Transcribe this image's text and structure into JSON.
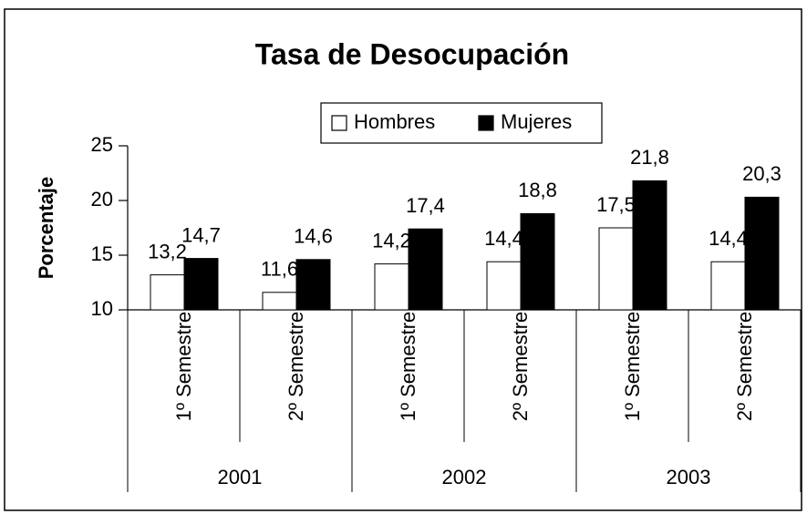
{
  "chart_data": {
    "type": "bar",
    "title": "Tasa de Desocupación",
    "y_label": "Porcentaje",
    "categories": [
      "1º Semestre",
      "2º Semestre",
      "1º Semestre",
      "2º Semestre",
      "1º Semestre",
      "2º Semestre"
    ],
    "groups": [
      "2001",
      "2002",
      "2003"
    ],
    "series": [
      {
        "name": "Hombres",
        "color": "#ffffff",
        "values": [
          13.2,
          11.6,
          14.2,
          14.4,
          17.5,
          14.4
        ],
        "value_labels": [
          "13,2",
          "11,6",
          "14,2",
          "14,4",
          "17,5",
          "14,4"
        ]
      },
      {
        "name": "Mujeres",
        "color": "#000000",
        "values": [
          14.7,
          14.6,
          17.4,
          18.8,
          21.8,
          20.3
        ],
        "value_labels": [
          "14,7",
          "14,6",
          "17,4",
          "18,8",
          "21,8",
          "20,3"
        ]
      }
    ],
    "ylim": [
      10,
      25
    ],
    "yticks": [
      10,
      15,
      20,
      25
    ],
    "legend": "top"
  }
}
